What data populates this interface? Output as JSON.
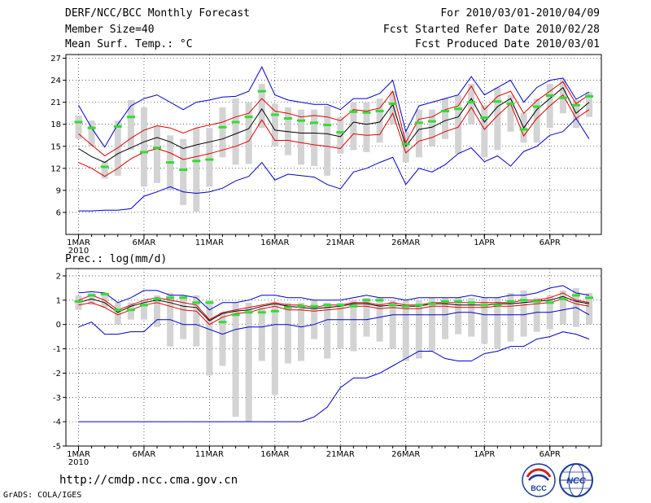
{
  "header": {
    "title": "DERF/NCC/BCC Monthly Forecast",
    "member_size": "Member Size=40",
    "variable": "Mean Surf. Temp.: °C",
    "forecast_period": "For 2010/03/01-2010/04/09",
    "started_refer_date": "Fcst Started Refer Date 2010/02/28",
    "produced_date": "Fcst Produced Date 2010/03/01"
  },
  "footer": {
    "url": "http://cmdp.ncc.cma.gov.cn",
    "grads": "GrADS: COLA/IGES",
    "logo_bcc": "BCC",
    "logo_ncc": "NCC"
  },
  "colors": {
    "envelope": "#0000c8",
    "spread": "#e00000",
    "mean": "#000000",
    "box": "#d3d3d3",
    "median": "#32dc32"
  },
  "chart_data": [
    {
      "type": "line",
      "title": "Mean Surf. Temp.: °C",
      "x_labels": [
        "1MAR",
        "6MAR",
        "11MAR",
        "16MAR",
        "21MAR",
        "26MAR",
        "1APR",
        "6APR"
      ],
      "x_year": "2010",
      "x_label_index": [
        0,
        5,
        10,
        15,
        20,
        25,
        31,
        36
      ],
      "days": 40,
      "ylim": [
        3,
        27.5
      ],
      "yticks": [
        6,
        9,
        12,
        15,
        18,
        21,
        24,
        27
      ],
      "series": [
        {
          "name": "max",
          "values": [
            20.6,
            17.5,
            14.9,
            18,
            20.5,
            21.5,
            22,
            21,
            20,
            21,
            21.3,
            21.7,
            21.8,
            22.5,
            25.8,
            22,
            21.3,
            21,
            20.7,
            20.7,
            20,
            21.5,
            21.5,
            22.2,
            24,
            17,
            20.5,
            21,
            21.5,
            22,
            24.5,
            22,
            23,
            24,
            21,
            23,
            24,
            24.3,
            21.4,
            22.4
          ]
        },
        {
          "name": "upper",
          "values": [
            16.7,
            15.2,
            13.7,
            14.8,
            16.1,
            17.2,
            17.8,
            17.5,
            16.8,
            17.5,
            17.9,
            18.3,
            19,
            19.5,
            21.5,
            19.8,
            19.5,
            19,
            19.2,
            19,
            18.5,
            20,
            19.8,
            20.2,
            22.5,
            15.5,
            18.7,
            19,
            20,
            20.5,
            23.2,
            20,
            21.8,
            22.5,
            19.5,
            21.2,
            22.5,
            23.8,
            20.8,
            22
          ]
        },
        {
          "name": "mean",
          "values": [
            14.7,
            13.6,
            12.8,
            14,
            14.8,
            15.6,
            16.2,
            15.6,
            14.7,
            15.2,
            15.6,
            16,
            16.7,
            17.4,
            20.1,
            17.2,
            17,
            16.8,
            16.8,
            16.7,
            16.3,
            18.3,
            18,
            18.3,
            20.7,
            15,
            17.3,
            17.6,
            18.5,
            19,
            21.5,
            18.3,
            20.4,
            21.5,
            17.5,
            20,
            21.5,
            23,
            19.5,
            21
          ]
        },
        {
          "name": "lower",
          "values": [
            12.8,
            12,
            10.9,
            12,
            13.3,
            14.2,
            14.7,
            14.1,
            13.2,
            13.6,
            14,
            14.5,
            15,
            15.7,
            18.6,
            15.8,
            15.8,
            15.5,
            15.2,
            15,
            14.7,
            16.7,
            16.5,
            16.6,
            19.5,
            14.1,
            15.7,
            16.2,
            17,
            17.6,
            20.3,
            17.3,
            19.2,
            20.8,
            16.4,
            18.8,
            20.5,
            22,
            18.8,
            20
          ]
        },
        {
          "name": "min",
          "values": [
            6.2,
            6.2,
            6.3,
            6.3,
            6.5,
            8.2,
            8.8,
            9.5,
            8.8,
            8.6,
            8.8,
            9.3,
            10.3,
            10.9,
            12.8,
            10.4,
            11.2,
            11,
            10.8,
            9.8,
            9.2,
            11.5,
            12,
            12.8,
            13.5,
            9.8,
            12,
            11.5,
            12.5,
            14,
            14.8,
            12.9,
            13.7,
            12.3,
            14.3,
            15,
            16.5,
            17,
            18.8,
            16
          ]
        }
      ],
      "boxes": [
        {
          "low": 16,
          "high": 19.2,
          "median": 18.3
        },
        {
          "low": 15,
          "high": 18.5,
          "median": 17.5
        },
        {
          "low": 10.6,
          "high": 13,
          "median": 12.2
        },
        {
          "low": 11,
          "high": 18.5,
          "median": 17.7
        },
        {
          "low": 14.5,
          "high": 21.3,
          "median": 19
        },
        {
          "low": 9.5,
          "high": 20.3,
          "median": 14.2
        },
        {
          "low": 10,
          "high": 17.8,
          "median": 14.8
        },
        {
          "low": 9,
          "high": 16.5,
          "median": 12.8
        },
        {
          "low": 7,
          "high": 16,
          "median": 11.8
        },
        {
          "low": 6.1,
          "high": 17.5,
          "median": 13
        },
        {
          "low": 9.5,
          "high": 17.5,
          "median": 13.2
        },
        {
          "low": 13.5,
          "high": 20.3,
          "median": 17.6
        },
        {
          "low": 12.5,
          "high": 21.5,
          "median": 18.3
        },
        {
          "low": 12.6,
          "high": 21,
          "median": 19
        },
        {
          "low": 17.5,
          "high": 23.5,
          "median": 22.5
        },
        {
          "low": 15,
          "high": 20.8,
          "median": 19.3
        },
        {
          "low": 13.8,
          "high": 20.3,
          "median": 18.8
        },
        {
          "low": 12.5,
          "high": 20,
          "median": 18.5
        },
        {
          "low": 12.3,
          "high": 20,
          "median": 18.2
        },
        {
          "low": 11,
          "high": 20.5,
          "median": 17.9
        },
        {
          "low": 14,
          "high": 19,
          "median": 16.9
        },
        {
          "low": 14.5,
          "high": 21,
          "median": 19.7
        },
        {
          "low": 14.2,
          "high": 21,
          "median": 19.6
        },
        {
          "low": 15.5,
          "high": 21.5,
          "median": 19.8
        },
        {
          "low": 18,
          "high": 22.5,
          "median": 20.8
        },
        {
          "low": 12.8,
          "high": 17,
          "median": 15.3
        },
        {
          "low": 13.5,
          "high": 20,
          "median": 18.2
        },
        {
          "low": 15,
          "high": 20,
          "median": 18.4
        },
        {
          "low": 16,
          "high": 21.5,
          "median": 19.8
        },
        {
          "low": 14,
          "high": 22,
          "median": 20.1
        },
        {
          "low": 18,
          "high": 23.5,
          "median": 21
        },
        {
          "low": 13.5,
          "high": 20.6,
          "median": 18.9
        },
        {
          "low": 14.5,
          "high": 23,
          "median": 21.1
        },
        {
          "low": 17,
          "high": 22,
          "median": 20.8
        },
        {
          "low": 15.5,
          "high": 19.5,
          "median": 17.3
        },
        {
          "low": 15.5,
          "high": 21.5,
          "median": 20.4
        },
        {
          "low": 17.5,
          "high": 23.5,
          "median": 21.9
        },
        {
          "low": 19.5,
          "high": 24.2,
          "median": 21.6
        },
        {
          "low": 17.5,
          "high": 21.3,
          "median": 20.6
        },
        {
          "low": 19,
          "high": 22.4,
          "median": 21.8
        }
      ]
    },
    {
      "type": "line",
      "title": "Prec.: log(mm/d)",
      "x_labels": [
        "1MAR",
        "6MAR",
        "11MAR",
        "16MAR",
        "21MAR",
        "26MAR",
        "1APR",
        "6APR"
      ],
      "x_year": "2010",
      "x_label_index": [
        0,
        5,
        10,
        15,
        20,
        25,
        31,
        36
      ],
      "days": 40,
      "ylim": [
        -5,
        2.3
      ],
      "yticks": [
        -5,
        -4,
        -3,
        -2,
        -1,
        0,
        1,
        2
      ],
      "series": [
        {
          "name": "max",
          "values": [
            1.3,
            1.35,
            1.3,
            0.9,
            1.1,
            1.4,
            1.4,
            1.2,
            1.2,
            1.1,
            0.6,
            0.9,
            0.9,
            1,
            1.2,
            1.2,
            1.1,
            1.1,
            1,
            1,
            1,
            1.1,
            1.2,
            1.1,
            1.1,
            1,
            1.1,
            1.1,
            1.1,
            1.1,
            1.2,
            1.1,
            1.1,
            1.2,
            1.2,
            1.3,
            1.5,
            1.6,
            1.3,
            1.2
          ]
        },
        {
          "name": "upper",
          "values": [
            1,
            1.2,
            1,
            0.6,
            0.8,
            1,
            1.1,
            1,
            0.9,
            0.8,
            0.2,
            0.5,
            0.6,
            0.7,
            0.8,
            0.9,
            0.8,
            0.8,
            0.7,
            0.8,
            0.8,
            0.9,
            0.9,
            0.8,
            0.9,
            0.8,
            0.8,
            0.9,
            0.9,
            0.9,
            0.9,
            0.9,
            0.9,
            0.9,
            1,
            1,
            1.1,
            1.3,
            1,
            0.9
          ]
        },
        {
          "name": "mean",
          "values": [
            0.9,
            1.05,
            0.9,
            0.5,
            0.75,
            0.9,
            1,
            0.9,
            0.75,
            0.7,
            0.15,
            0.45,
            0.55,
            0.6,
            0.75,
            0.85,
            0.75,
            0.7,
            0.65,
            0.7,
            0.75,
            0.85,
            0.85,
            0.75,
            0.8,
            0.75,
            0.75,
            0.85,
            0.85,
            0.8,
            0.8,
            0.8,
            0.85,
            0.85,
            0.9,
            0.95,
            1,
            1.15,
            0.95,
            0.85
          ]
        },
        {
          "name": "lower",
          "values": [
            0.8,
            0.9,
            0.7,
            0.4,
            0.6,
            0.8,
            0.9,
            0.75,
            0.6,
            0.55,
            0,
            0.3,
            0.45,
            0.5,
            0.65,
            0.75,
            0.6,
            0.6,
            0.55,
            0.6,
            0.65,
            0.75,
            0.75,
            0.65,
            0.7,
            0.65,
            0.65,
            0.75,
            0.75,
            0.7,
            0.7,
            0.7,
            0.75,
            0.75,
            0.8,
            0.85,
            0.9,
            1.05,
            0.85,
            0.75
          ]
        },
        {
          "name": "min",
          "values": [
            -0.1,
            0.1,
            -0.4,
            -0.4,
            -0.3,
            -0.3,
            0.2,
            0.2,
            0,
            0,
            -0.2,
            -0.4,
            -0.2,
            -0.1,
            -0.1,
            0,
            0,
            -0.1,
            0,
            0.2,
            0.2,
            0.2,
            0.2,
            0.3,
            0.4,
            0.4,
            0.4,
            0.4,
            0.4,
            0.5,
            0.5,
            0.4,
            0.4,
            0.4,
            0.4,
            0.5,
            0.5,
            0.6,
            0.7,
            0.4
          ]
        },
        {
          "name": "floor",
          "values": [
            -4,
            -4,
            -4,
            -4,
            -4,
            -4,
            -4,
            -4,
            -4,
            -4,
            -4,
            -4,
            -4,
            -4,
            -4,
            -4,
            -4,
            -4,
            -3.8,
            -3.4,
            -2.6,
            -2.2,
            -2.2,
            -2,
            -1.7,
            -1.4,
            -1.1,
            -1.1,
            -1.4,
            -1.5,
            -1.5,
            -1.2,
            -1.1,
            -0.9,
            -0.9,
            -0.6,
            -0.5,
            -0.3,
            -0.4,
            -0.6
          ]
        }
      ],
      "boxes": [
        {
          "low": 0.6,
          "high": 1.2,
          "median": 0.95
        },
        {
          "low": 0.8,
          "high": 1.3,
          "median": 1.2
        },
        {
          "low": 0.7,
          "high": 1.3,
          "median": 1.25
        },
        {
          "low": 0,
          "high": 0.9,
          "median": 0.6
        },
        {
          "low": 0.2,
          "high": 0.9,
          "median": 0.6
        },
        {
          "low": 0.2,
          "high": 1,
          "median": 0.8
        },
        {
          "low": -0.1,
          "high": 1.2,
          "median": 1.05
        },
        {
          "low": -0.9,
          "high": 1.3,
          "median": 1.1
        },
        {
          "low": -0.6,
          "high": 1.2,
          "median": 1.1
        },
        {
          "low": -0.9,
          "high": 1.2,
          "median": 0.9
        },
        {
          "low": -2.1,
          "high": 1,
          "median": 0.9
        },
        {
          "low": -1.7,
          "high": 0.5,
          "median": 0.1
        },
        {
          "low": -3.8,
          "high": 0.9,
          "median": 0.4
        },
        {
          "low": -4,
          "high": 0.9,
          "median": 0.5
        },
        {
          "low": -1.5,
          "high": 0.7,
          "median": 0.5
        },
        {
          "low": -2.9,
          "high": 0.8,
          "median": 0.55
        },
        {
          "low": -1.6,
          "high": 0.9,
          "median": 0.7
        },
        {
          "low": -1.5,
          "high": 0.9,
          "median": 0.75
        },
        {
          "low": -0.6,
          "high": 1,
          "median": 0.75
        },
        {
          "low": -1.4,
          "high": 0.9,
          "median": 0.8
        },
        {
          "low": -1,
          "high": 0.9,
          "median": 0.8
        },
        {
          "low": -1.1,
          "high": 1,
          "median": 0.75
        },
        {
          "low": -0.5,
          "high": 1.1,
          "median": 1
        },
        {
          "low": -0.7,
          "high": 1.1,
          "median": 1
        },
        {
          "low": -1,
          "high": 1,
          "median": 0.8
        },
        {
          "low": -1.5,
          "high": 1,
          "median": 0.75
        },
        {
          "low": -1.4,
          "high": 1,
          "median": 0.8
        },
        {
          "low": -1.1,
          "high": 1.1,
          "median": 0.85
        },
        {
          "low": -0.6,
          "high": 1.1,
          "median": 0.95
        },
        {
          "low": -0.4,
          "high": 1.1,
          "median": 0.95
        },
        {
          "low": -0.5,
          "high": 1.1,
          "median": 0.9
        },
        {
          "low": -0.8,
          "high": 1.1,
          "median": 0.8
        },
        {
          "low": -1,
          "high": 1.1,
          "median": 0.8
        },
        {
          "low": -0.7,
          "high": 1.3,
          "median": 0.95
        },
        {
          "low": -0.5,
          "high": 1.4,
          "median": 1
        },
        {
          "low": -0.3,
          "high": 1.1,
          "median": 0.95
        },
        {
          "low": -0.2,
          "high": 1.2,
          "median": 0.9
        },
        {
          "low": 0,
          "high": 1.4,
          "median": 1.05
        },
        {
          "low": -0.1,
          "high": 1.5,
          "median": 1.2
        },
        {
          "low": 0,
          "high": 1.3,
          "median": 1.1
        }
      ]
    }
  ]
}
